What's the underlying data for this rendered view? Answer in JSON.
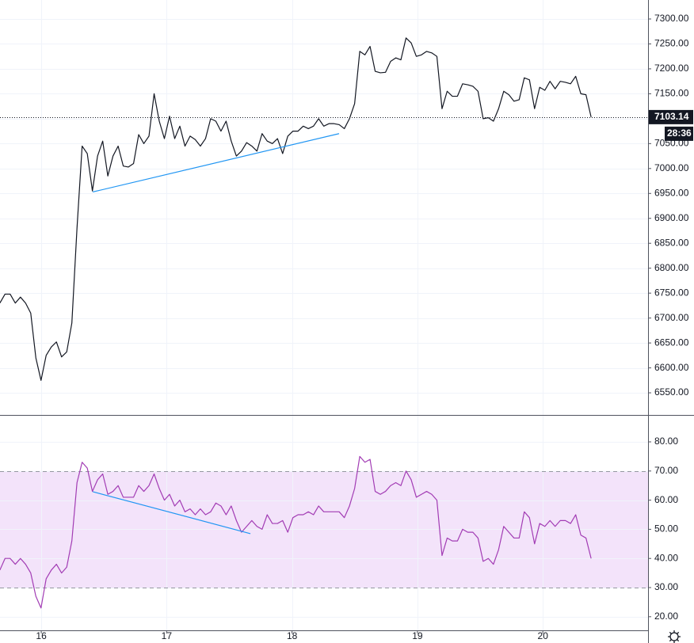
{
  "chart_data": [
    {
      "type": "line",
      "x": [
        15.67,
        15.711,
        15.752,
        15.793,
        15.834,
        15.875,
        15.916,
        15.957,
        15.998,
        16.039,
        16.08,
        16.121,
        16.162,
        16.203,
        16.244,
        16.285,
        16.326,
        16.367,
        16.408,
        16.449,
        16.49,
        16.531,
        16.572,
        16.613,
        16.654,
        16.695,
        16.736,
        16.777,
        16.818,
        16.859,
        16.9,
        16.941,
        16.982,
        17.023,
        17.064,
        17.105,
        17.146,
        17.187,
        17.228,
        17.269,
        17.31,
        17.351,
        17.392,
        17.433,
        17.474,
        17.515,
        17.556,
        17.597,
        17.638,
        17.679,
        17.72,
        17.761,
        17.802,
        17.843,
        17.884,
        17.925,
        17.966,
        18.007,
        18.048,
        18.089,
        18.13,
        18.171,
        18.212,
        18.253,
        18.294,
        18.335,
        18.376,
        18.417,
        18.458,
        18.499,
        18.54,
        18.581,
        18.622,
        18.663,
        18.704,
        18.745,
        18.786,
        18.827,
        18.868,
        18.909,
        18.95,
        18.991,
        19.032,
        19.073,
        19.114,
        19.155,
        19.196,
        19.237,
        19.278,
        19.319,
        19.36,
        19.401,
        19.442,
        19.483,
        19.524,
        19.565,
        19.606,
        19.647,
        19.688,
        19.729,
        19.77,
        19.811,
        19.852,
        19.893,
        19.934,
        19.975,
        20.016,
        20.057,
        20.098,
        20.139,
        20.18,
        20.221,
        20.262,
        20.303,
        20.344,
        20.385
      ],
      "values": [
        6730,
        6748,
        6748,
        6730,
        6742,
        6730,
        6710,
        6620,
        6575,
        6625,
        6642,
        6652,
        6622,
        6632,
        6690,
        6880,
        7045,
        7030,
        6955,
        7025,
        7055,
        6985,
        7025,
        7045,
        7005,
        7003,
        7010,
        7068,
        7050,
        7065,
        7150,
        7095,
        7060,
        7105,
        7060,
        7085,
        7045,
        7065,
        7058,
        7045,
        7060,
        7100,
        7095,
        7075,
        7095,
        7055,
        7025,
        7035,
        7052,
        7045,
        7035,
        7070,
        7055,
        7050,
        7060,
        7030,
        7065,
        7075,
        7075,
        7085,
        7080,
        7085,
        7100,
        7085,
        7090,
        7090,
        7088,
        7080,
        7100,
        7130,
        7235,
        7228,
        7245,
        7195,
        7192,
        7193,
        7215,
        7222,
        7218,
        7262,
        7252,
        7225,
        7228,
        7235,
        7232,
        7225,
        7120,
        7155,
        7145,
        7145,
        7170,
        7168,
        7165,
        7155,
        7100,
        7102,
        7095,
        7120,
        7155,
        7148,
        7135,
        7138,
        7182,
        7178,
        7120,
        7163,
        7157,
        7175,
        7160,
        7175,
        7173,
        7170,
        7185,
        7150,
        7148,
        7103.14
      ],
      "color": "#131722",
      "xlim": [
        15.671,
        20.839
      ],
      "xticks": [
        16,
        17,
        18,
        19,
        20
      ],
      "ylim": [
        6505.6,
        7338.1
      ],
      "yticks": [
        {
          "value": 6550,
          "label": "6550.00"
        },
        {
          "value": 6600,
          "label": "6600.00"
        },
        {
          "value": 6650,
          "label": "6650.00"
        },
        {
          "value": 6700,
          "label": "6700.00"
        },
        {
          "value": 6750,
          "label": "6750.00"
        },
        {
          "value": 6800,
          "label": "6800.00"
        },
        {
          "value": 6850,
          "label": "6850.00"
        },
        {
          "value": 6900,
          "label": "6900.00"
        },
        {
          "value": 6950,
          "label": "6950.00"
        },
        {
          "value": 7000,
          "label": "7000.00"
        },
        {
          "value": 7050,
          "label": "7050.00"
        },
        {
          "value": 7100,
          "label": "7100.00"
        },
        {
          "value": 7150,
          "label": "7150.00"
        },
        {
          "value": 7200,
          "label": "7200.00"
        },
        {
          "value": 7250,
          "label": "7250.00"
        },
        {
          "value": 7300,
          "label": "7300.00"
        }
      ],
      "grid": true,
      "trendline": {
        "x": [
          16.411,
          18.375
        ],
        "values": [
          6953,
          7070
        ],
        "color": "#2196f3"
      },
      "countdown": "28:36"
    },
    {
      "type": "line",
      "x": [
        15.67,
        15.711,
        15.752,
        15.793,
        15.834,
        15.875,
        15.916,
        15.957,
        15.998,
        16.039,
        16.08,
        16.121,
        16.162,
        16.203,
        16.244,
        16.285,
        16.326,
        16.367,
        16.408,
        16.449,
        16.49,
        16.531,
        16.572,
        16.613,
        16.654,
        16.695,
        16.736,
        16.777,
        16.818,
        16.859,
        16.9,
        16.941,
        16.982,
        17.023,
        17.064,
        17.105,
        17.146,
        17.187,
        17.228,
        17.269,
        17.31,
        17.351,
        17.392,
        17.433,
        17.474,
        17.515,
        17.556,
        17.597,
        17.638,
        17.679,
        17.72,
        17.761,
        17.802,
        17.843,
        17.884,
        17.925,
        17.966,
        18.007,
        18.048,
        18.089,
        18.13,
        18.171,
        18.212,
        18.253,
        18.294,
        18.335,
        18.376,
        18.417,
        18.458,
        18.499,
        18.54,
        18.581,
        18.622,
        18.663,
        18.704,
        18.745,
        18.786,
        18.827,
        18.868,
        18.909,
        18.95,
        18.991,
        19.032,
        19.073,
        19.114,
        19.155,
        19.196,
        19.237,
        19.278,
        19.319,
        19.36,
        19.401,
        19.442,
        19.483,
        19.524,
        19.565,
        19.606,
        19.647,
        19.688,
        19.729,
        19.77,
        19.811,
        19.852,
        19.893,
        19.934,
        19.975,
        20.016,
        20.057,
        20.098,
        20.139,
        20.18,
        20.221,
        20.262,
        20.303,
        20.344,
        20.385
      ],
      "values": [
        36,
        40,
        40,
        38,
        40,
        38,
        35,
        27,
        23,
        33,
        36,
        38,
        35,
        37,
        46,
        66,
        73,
        71,
        63,
        67,
        69,
        62,
        63,
        65,
        61,
        61,
        61,
        65,
        63,
        65,
        69,
        64,
        60,
        62,
        58,
        60,
        56,
        57,
        55,
        57,
        55,
        56,
        59,
        58,
        55,
        58,
        53,
        49,
        51,
        53,
        51,
        50,
        55,
        52,
        52,
        53,
        49,
        54,
        55,
        55,
        56,
        55,
        58,
        56,
        56,
        56,
        56,
        54,
        58,
        64,
        75,
        73,
        74,
        63,
        62,
        63,
        65,
        66,
        65,
        70,
        67,
        61,
        62,
        63,
        62,
        60,
        41,
        47,
        46,
        46,
        50,
        49,
        49,
        47,
        39,
        40,
        38,
        43,
        51,
        49,
        47,
        47,
        56,
        54,
        45,
        52,
        51,
        53,
        51,
        53,
        53,
        52,
        55,
        48,
        47,
        40
      ],
      "color": "#a23cb4",
      "xlim": [
        15.671,
        20.839
      ],
      "xticks": [
        16,
        17,
        18,
        19,
        20
      ],
      "ylim": [
        15.33,
        88.97
      ],
      "yticks": [
        {
          "value": 20,
          "label": "20.00"
        },
        {
          "value": 30,
          "label": "30.00"
        },
        {
          "value": 40,
          "label": "40.00"
        },
        {
          "value": 50,
          "label": "50.00"
        },
        {
          "value": 60,
          "label": "60.00"
        },
        {
          "value": 70,
          "label": "70.00"
        },
        {
          "value": 80,
          "label": "80.00"
        }
      ],
      "grid": true,
      "band": [
        30,
        70
      ],
      "band_color": "#f3e3fa",
      "trendline": {
        "x": [
          16.411,
          17.668
        ],
        "values": [
          62.9,
          48.5
        ],
        "color": "#2196f3"
      }
    }
  ]
}
